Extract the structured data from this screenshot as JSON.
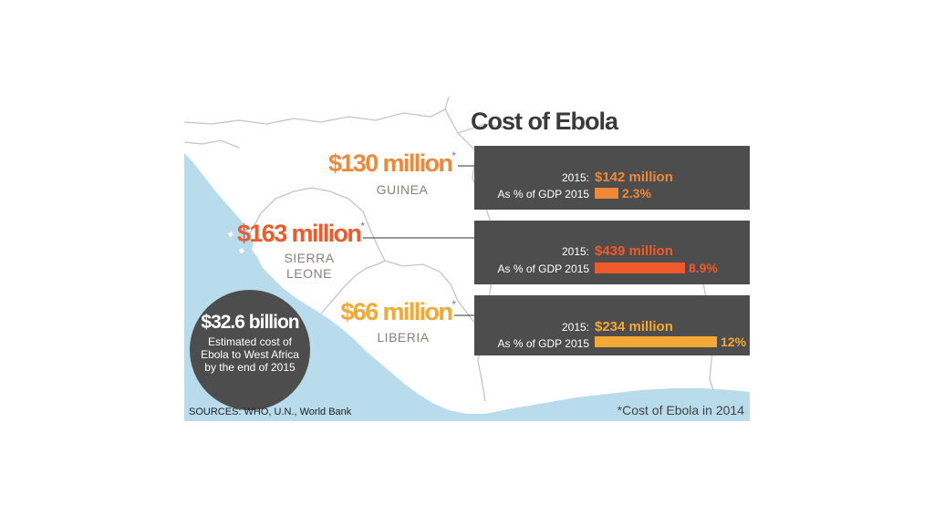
{
  "title": "Cost of Ebola",
  "countries": [
    {
      "name": "GUINEA",
      "cost_2014": "$130 million",
      "asterisk": "*",
      "year_label": "2015:",
      "cost_2015": "$142 million",
      "gdp_label": "As % of GDP 2015",
      "gdp_pct_text": "2.3%",
      "gdp_pct": 2.3,
      "color": "#f0883a"
    },
    {
      "name": "SIERRA LEONE",
      "name_line1": "SIERRA",
      "name_line2": "LEONE",
      "cost_2014": "$163 million",
      "asterisk": "*",
      "year_label": "2015:",
      "cost_2015": "$439 million",
      "gdp_label": "As % of GDP 2015",
      "gdp_pct_text": "8.9%",
      "gdp_pct": 8.9,
      "color": "#f05a2a"
    },
    {
      "name": "LIBERIA",
      "cost_2014": "$66 million",
      "asterisk": "*",
      "year_label": "2015:",
      "cost_2015": "$234 million",
      "gdp_label": "As % of GDP 2015",
      "gdp_pct_text": "12%",
      "gdp_pct": 12,
      "color": "#f5a833"
    }
  ],
  "summary": {
    "amount": "$32.6 billion",
    "description": "Estimated cost of Ebola to West Africa by the end of 2015"
  },
  "sources": "SOURCES: WHO, U.N., World Bank",
  "footnote": "*Cost of Ebola in 2014",
  "colors": {
    "ocean": "#b8dcec",
    "land": "#ffffff",
    "panel": "#4d4d4d",
    "border": "#c4c4c4"
  }
}
